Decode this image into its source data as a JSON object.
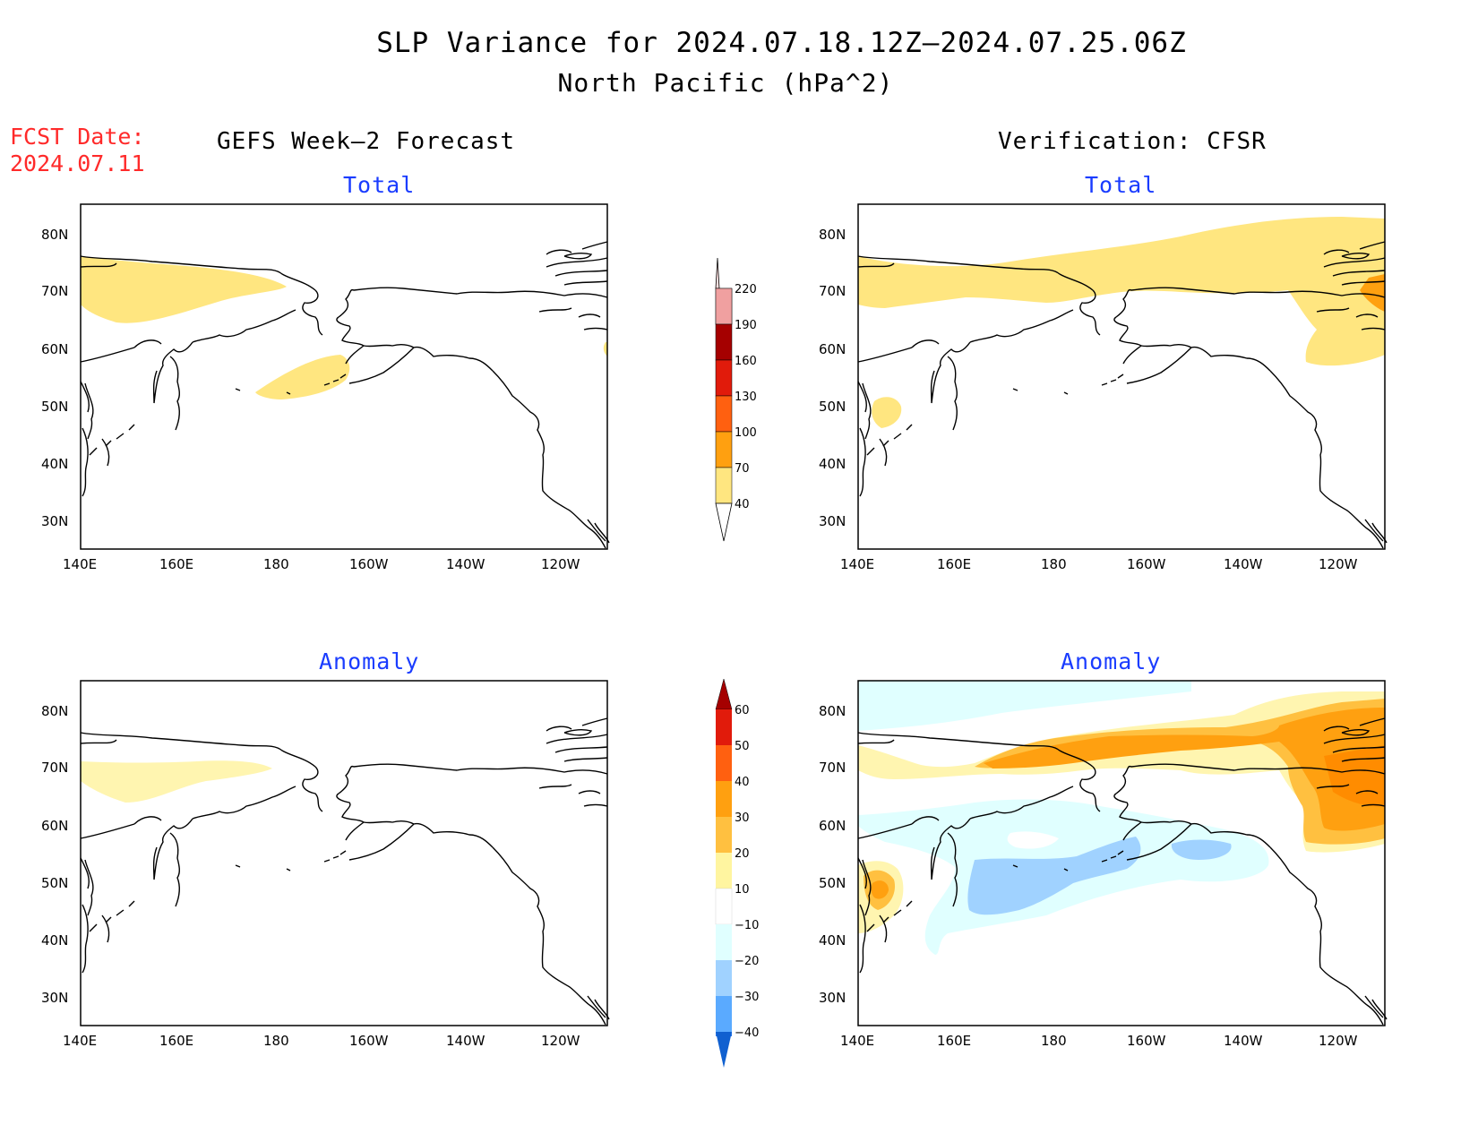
{
  "header": {
    "title": "SLP Variance for 2024.07.18.12Z–2024.07.25.06Z",
    "subtitle": "North Pacific (hPa^2)",
    "fcst_label": "FCST Date:",
    "fcst_date": "2024.07.11"
  },
  "columns": {
    "left": "GEFS Week–2 Forecast",
    "right": "Verification: CFSR"
  },
  "panels": {
    "top_left": {
      "label": "Total"
    },
    "top_right": {
      "label": "Total"
    },
    "bottom_left": {
      "label": "Anomaly"
    },
    "bottom_right": {
      "label": "Anomaly"
    }
  },
  "axes": {
    "lon_ticks": [
      "140E",
      "160E",
      "180",
      "160W",
      "140W",
      "120W"
    ],
    "lat_ticks": [
      "80N",
      "70N",
      "60N",
      "50N",
      "40N",
      "30N"
    ]
  },
  "colorbars": {
    "total": {
      "levels": [
        "40",
        "70",
        "100",
        "130",
        "160",
        "190",
        "220"
      ],
      "colors": [
        "#ffe680",
        "#ffa010",
        "#ff6010",
        "#e11b0b",
        "#a50000",
        "#f0a0a0",
        "#ffe0e0"
      ]
    },
    "anomaly": {
      "levels": [
        "60",
        "50",
        "40",
        "30",
        "20",
        "10",
        "−10",
        "−20",
        "−30",
        "−40"
      ],
      "colors": [
        "#a50000",
        "#e11b0b",
        "#ff6010",
        "#ffa010",
        "#ffc040",
        "#fff5a0",
        "#ffffff",
        "#e0ffff",
        "#a0d2ff",
        "#5aaaff",
        "#2878f0",
        "#1060d0"
      ]
    }
  },
  "fill_colors": {
    "pos1": "#ffeb80",
    "pos2": "#ffc040",
    "pos3": "#ffa010",
    "pos4": "#ff8c00",
    "neg1": "#e0ffff",
    "neg2": "#a0d2ff",
    "total1": "#ffe680",
    "total2": "#ffa010"
  }
}
